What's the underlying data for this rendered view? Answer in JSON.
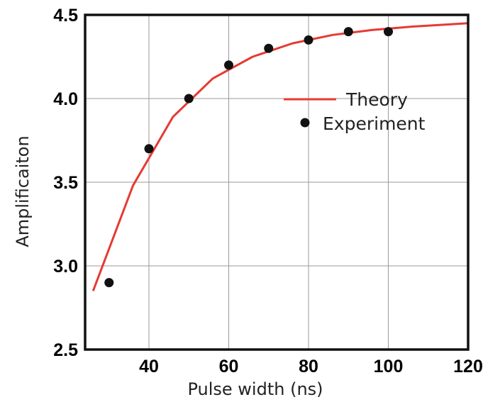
{
  "chart_data": {
    "type": "line",
    "xlabel": "Pulse width (ns)",
    "ylabel": "Amplificaiton",
    "xlim": [
      24,
      120
    ],
    "ylim": [
      2.5,
      4.5
    ],
    "xticks": [
      40,
      60,
      80,
      100,
      120
    ],
    "yticks": [
      2.5,
      3.0,
      3.5,
      4.0,
      4.5
    ],
    "xtick_labels": [
      "40",
      "60",
      "80",
      "100",
      "120"
    ],
    "ytick_labels": [
      "2.5",
      "3.0",
      "3.5",
      "4.0",
      "4.5"
    ],
    "grid": true,
    "legend_position": "right",
    "series": [
      {
        "name": "Theory",
        "kind": "line",
        "color": "#e53a32",
        "x": [
          26,
          36,
          46,
          56,
          66,
          76,
          86,
          96,
          106,
          120
        ],
        "y": [
          2.85,
          3.48,
          3.89,
          4.12,
          4.25,
          4.33,
          4.38,
          4.41,
          4.43,
          4.45
        ]
      },
      {
        "name": "Experiment",
        "kind": "scatter",
        "color": "#111111",
        "x": [
          30,
          40,
          50,
          60,
          70,
          80,
          90,
          100
        ],
        "y": [
          2.9,
          3.7,
          4.0,
          4.2,
          4.3,
          4.35,
          4.4,
          4.4
        ]
      }
    ]
  }
}
